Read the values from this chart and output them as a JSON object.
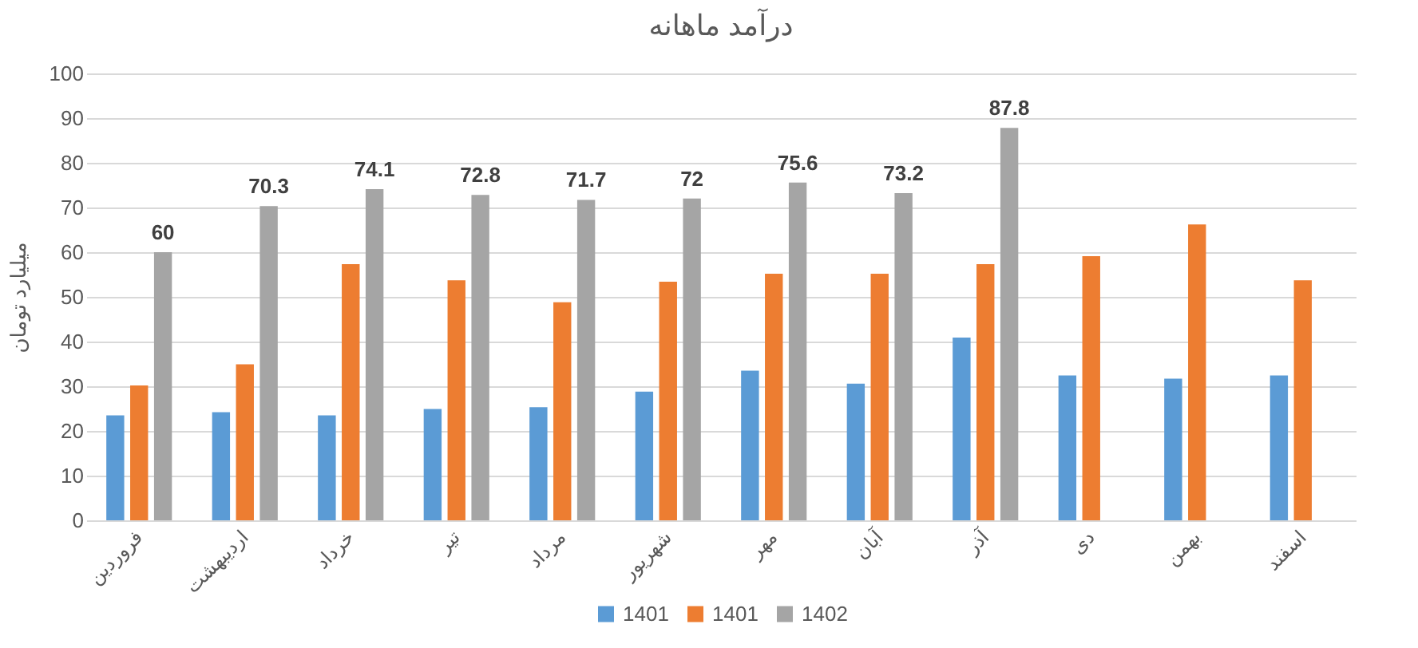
{
  "chart_data": {
    "type": "bar",
    "title": "درآمد ماهانه",
    "ylabel": "میلیارد تومان",
    "categories": [
      "فروردین",
      "اردیبهشت",
      "خرداد",
      "تیر",
      "مرداد",
      "شهریور",
      "مهر",
      "آبان",
      "آذر",
      "دی",
      "بهمن",
      "اسفند"
    ],
    "series": [
      {
        "name": "1401",
        "color": "#5b9bd5",
        "values": [
          23.5,
          24.2,
          23.5,
          24.9,
          25.3,
          28.8,
          33.5,
          30.6,
          40.9,
          32.4,
          31.7,
          32.4
        ]
      },
      {
        "name": "1401",
        "color": "#ed7d31",
        "values": [
          30.2,
          34.9,
          57.3,
          53.7,
          48.8,
          53.4,
          55.2,
          55.2,
          57.3,
          59.1,
          66.2,
          53.7
        ]
      },
      {
        "name": "1402",
        "color": "#a5a5a5",
        "values": [
          60,
          70.3,
          74.1,
          72.8,
          71.7,
          72,
          75.6,
          73.2,
          87.8,
          null,
          null,
          null
        ],
        "value_labels": [
          "60",
          "70.3",
          "74.1",
          "72.8",
          "71.7",
          "72",
          "75.6",
          "73.2",
          "87.8",
          null,
          null,
          null
        ]
      }
    ],
    "ylim": [
      0,
      100
    ],
    "yticks": [
      0,
      10,
      20,
      30,
      40,
      50,
      60,
      70,
      80,
      90,
      100
    ],
    "grid": "y",
    "legend": "bottom"
  }
}
